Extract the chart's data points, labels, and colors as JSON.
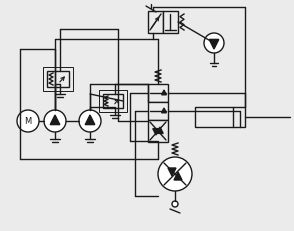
{
  "bg_color": "#ebebeb",
  "line_color": "#1a1a1a",
  "line_width": 1.0,
  "fig_width": 2.94,
  "fig_height": 2.32,
  "dpi": 100
}
